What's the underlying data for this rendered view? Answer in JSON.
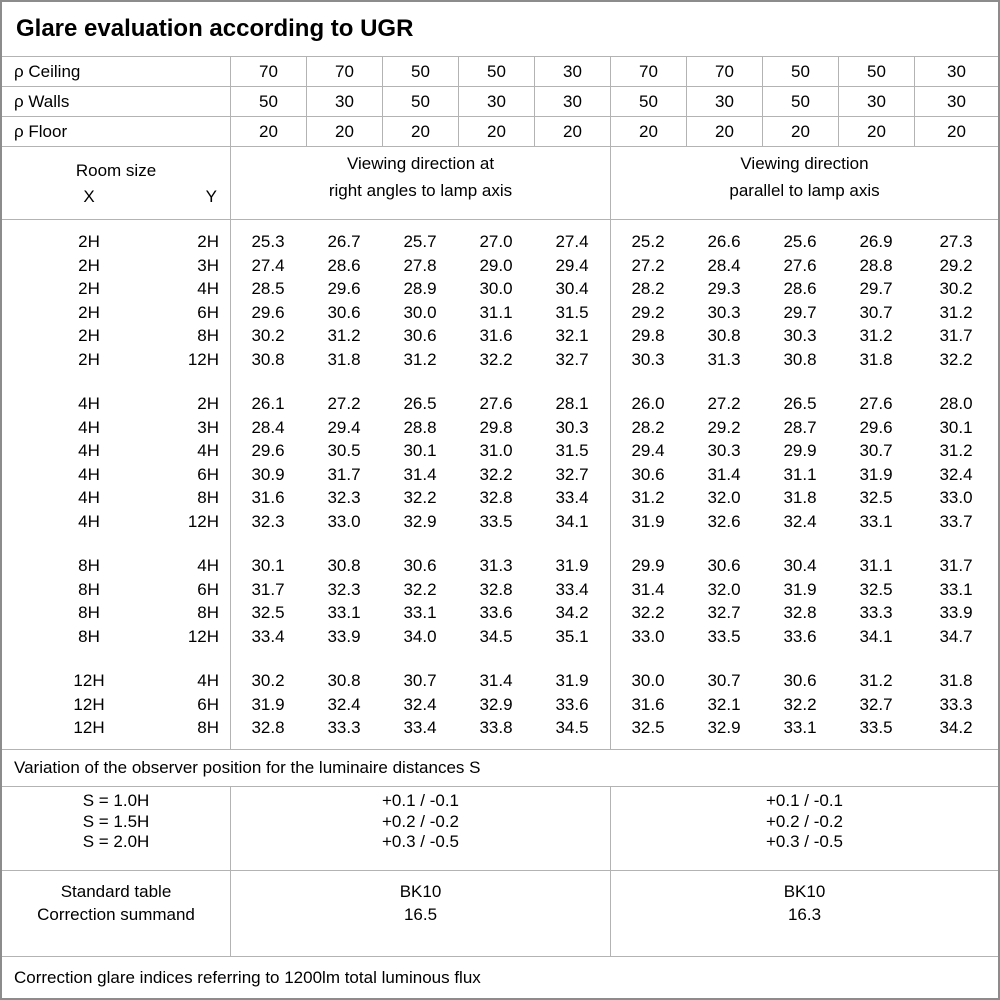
{
  "title": "Glare evaluation according to UGR",
  "reflectance_rows": [
    {
      "label": "ρ Ceiling",
      "values": [
        "70",
        "70",
        "50",
        "50",
        "30",
        "70",
        "70",
        "50",
        "50",
        "30"
      ]
    },
    {
      "label": "ρ Walls",
      "values": [
        "50",
        "30",
        "50",
        "30",
        "30",
        "50",
        "30",
        "50",
        "30",
        "30"
      ]
    },
    {
      "label": "ρ Floor",
      "values": [
        "20",
        "20",
        "20",
        "20",
        "20",
        "20",
        "20",
        "20",
        "20",
        "20"
      ]
    }
  ],
  "room_header": {
    "room_size": "Room size",
    "x": "X",
    "y": "Y",
    "group1": [
      "Viewing direction at",
      "right angles to lamp axis"
    ],
    "group2": [
      "Viewing direction",
      "parallel to lamp axis"
    ]
  },
  "ugr_blocks": [
    {
      "rows": [
        {
          "x": "2H",
          "y": "2H",
          "values": [
            "25.3",
            "26.7",
            "25.7",
            "27.0",
            "27.4",
            "25.2",
            "26.6",
            "25.6",
            "26.9",
            "27.3"
          ]
        },
        {
          "x": "2H",
          "y": "3H",
          "values": [
            "27.4",
            "28.6",
            "27.8",
            "29.0",
            "29.4",
            "27.2",
            "28.4",
            "27.6",
            "28.8",
            "29.2"
          ]
        },
        {
          "x": "2H",
          "y": "4H",
          "values": [
            "28.5",
            "29.6",
            "28.9",
            "30.0",
            "30.4",
            "28.2",
            "29.3",
            "28.6",
            "29.7",
            "30.2"
          ]
        },
        {
          "x": "2H",
          "y": "6H",
          "values": [
            "29.6",
            "30.6",
            "30.0",
            "31.1",
            "31.5",
            "29.2",
            "30.3",
            "29.7",
            "30.7",
            "31.2"
          ]
        },
        {
          "x": "2H",
          "y": "8H",
          "values": [
            "30.2",
            "31.2",
            "30.6",
            "31.6",
            "32.1",
            "29.8",
            "30.8",
            "30.3",
            "31.2",
            "31.7"
          ]
        },
        {
          "x": "2H",
          "y": "12H",
          "values": [
            "30.8",
            "31.8",
            "31.2",
            "32.2",
            "32.7",
            "30.3",
            "31.3",
            "30.8",
            "31.8",
            "32.2"
          ]
        }
      ]
    },
    {
      "rows": [
        {
          "x": "4H",
          "y": "2H",
          "values": [
            "26.1",
            "27.2",
            "26.5",
            "27.6",
            "28.1",
            "26.0",
            "27.2",
            "26.5",
            "27.6",
            "28.0"
          ]
        },
        {
          "x": "4H",
          "y": "3H",
          "values": [
            "28.4",
            "29.4",
            "28.8",
            "29.8",
            "30.3",
            "28.2",
            "29.2",
            "28.7",
            "29.6",
            "30.1"
          ]
        },
        {
          "x": "4H",
          "y": "4H",
          "values": [
            "29.6",
            "30.5",
            "30.1",
            "31.0",
            "31.5",
            "29.4",
            "30.3",
            "29.9",
            "30.7",
            "31.2"
          ]
        },
        {
          "x": "4H",
          "y": "6H",
          "values": [
            "30.9",
            "31.7",
            "31.4",
            "32.2",
            "32.7",
            "30.6",
            "31.4",
            "31.1",
            "31.9",
            "32.4"
          ]
        },
        {
          "x": "4H",
          "y": "8H",
          "values": [
            "31.6",
            "32.3",
            "32.2",
            "32.8",
            "33.4",
            "31.2",
            "32.0",
            "31.8",
            "32.5",
            "33.0"
          ]
        },
        {
          "x": "4H",
          "y": "12H",
          "values": [
            "32.3",
            "33.0",
            "32.9",
            "33.5",
            "34.1",
            "31.9",
            "32.6",
            "32.4",
            "33.1",
            "33.7"
          ]
        }
      ]
    },
    {
      "rows": [
        {
          "x": "8H",
          "y": "4H",
          "values": [
            "30.1",
            "30.8",
            "30.6",
            "31.3",
            "31.9",
            "29.9",
            "30.6",
            "30.4",
            "31.1",
            "31.7"
          ]
        },
        {
          "x": "8H",
          "y": "6H",
          "values": [
            "31.7",
            "32.3",
            "32.2",
            "32.8",
            "33.4",
            "31.4",
            "32.0",
            "31.9",
            "32.5",
            "33.1"
          ]
        },
        {
          "x": "8H",
          "y": "8H",
          "values": [
            "32.5",
            "33.1",
            "33.1",
            "33.6",
            "34.2",
            "32.2",
            "32.7",
            "32.8",
            "33.3",
            "33.9"
          ]
        },
        {
          "x": "8H",
          "y": "12H",
          "values": [
            "33.4",
            "33.9",
            "34.0",
            "34.5",
            "35.1",
            "33.0",
            "33.5",
            "33.6",
            "34.1",
            "34.7"
          ]
        }
      ]
    },
    {
      "rows": [
        {
          "x": "12H",
          "y": "4H",
          "values": [
            "30.2",
            "30.8",
            "30.7",
            "31.4",
            "31.9",
            "30.0",
            "30.7",
            "30.6",
            "31.2",
            "31.8"
          ]
        },
        {
          "x": "12H",
          "y": "6H",
          "values": [
            "31.9",
            "32.4",
            "32.4",
            "32.9",
            "33.6",
            "31.6",
            "32.1",
            "32.2",
            "32.7",
            "33.3"
          ]
        },
        {
          "x": "12H",
          "y": "8H",
          "values": [
            "32.8",
            "33.3",
            "33.4",
            "33.8",
            "34.5",
            "32.5",
            "32.9",
            "33.1",
            "33.5",
            "34.2"
          ]
        }
      ]
    }
  ],
  "variation_note": "Variation of the observer position for the luminaire distances S",
  "variation": {
    "labels": [
      "S = 1.0H",
      "S = 1.5H",
      "S = 2.0H"
    ],
    "group1": [
      "+0.1 / -0.1",
      "+0.2 / -0.2",
      "+0.3 / -0.5"
    ],
    "group2": [
      "+0.1 / -0.1",
      "+0.2 / -0.2",
      "+0.3 / -0.5"
    ]
  },
  "correction": {
    "labels": [
      "Standard table",
      "Correction summand"
    ],
    "group1": [
      "BK10",
      "16.5"
    ],
    "group2": [
      "BK10",
      "16.3"
    ]
  },
  "footer_note": "Correction glare indices referring to 1200lm total luminous flux",
  "colors": {
    "border_outer": "#8c8c8c",
    "border_inner": "#b3b3b3",
    "text": "#000000",
    "background": "#ffffff"
  }
}
